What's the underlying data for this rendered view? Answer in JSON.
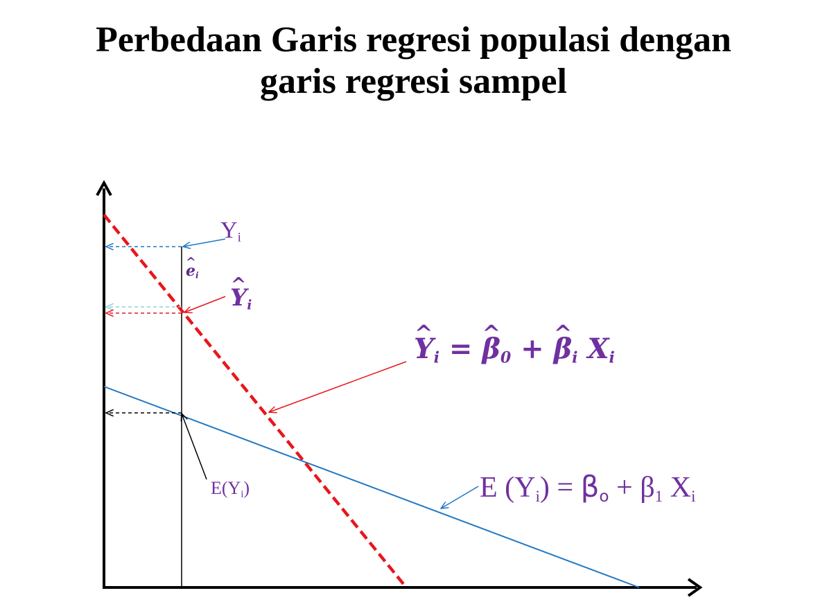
{
  "title": {
    "line1": "Perbedaan Garis regresi populasi dengan",
    "line2": "garis regresi sampel"
  },
  "labels": {
    "yi": {
      "base": "Y",
      "sub": "i"
    },
    "ei": {
      "base": "e",
      "sub": "i"
    },
    "yi_hat": {
      "base": "Y",
      "sub": "i"
    },
    "sample_eq": {
      "lhs": "Y",
      "lhs_sub": "i",
      "eq": "=",
      "b0": "β",
      "b0_sub": "0",
      "plus": "+",
      "bi": "β",
      "bi_sub": "i",
      "x": "X",
      "x_sub": "i"
    },
    "eyi": {
      "pre": "E(Y",
      "sub": "i",
      "post": ")"
    },
    "pop_eq": {
      "pre": "E (Y",
      "sub1": "i",
      "mid": ") = ",
      "b0": "β",
      "b0_sub": "o",
      "plus": " + β",
      "b1_sub": "1",
      "x": " X",
      "x_sub": "i"
    }
  },
  "colors": {
    "axes": "#000000",
    "sample_line": "#e8161b",
    "population_line": "#1f77c4",
    "label": "#7030a0",
    "ei_label": "#5b2c8f"
  }
}
